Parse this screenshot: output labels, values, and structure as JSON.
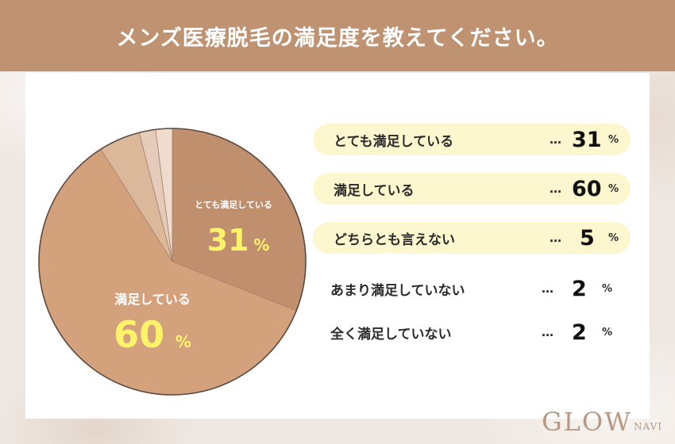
{
  "header": {
    "title": "メンズ医療脱毛の満足度を教えてください。"
  },
  "chart_data": {
    "type": "pie",
    "categories": [
      "とても満足している",
      "満足している",
      "どちらとも言えない",
      "あまり満足していない",
      "全く満足していない"
    ],
    "values": [
      31,
      60,
      5,
      2,
      2
    ],
    "unit": "%",
    "colors": [
      "#c08f6e",
      "#d3a27c",
      "#dcb89b",
      "#e5ccba",
      "#efdccf"
    ],
    "slice_labels": [
      {
        "text": "とても満足している",
        "value": "31",
        "unit": "%"
      },
      {
        "text": "満足している",
        "value": "60",
        "unit": "%"
      }
    ]
  },
  "legend": [
    {
      "label": "とても満足している",
      "dots": "…",
      "value": "31",
      "unit": "%",
      "highlight": true
    },
    {
      "label": "満足している",
      "dots": "…",
      "value": "60",
      "unit": "%",
      "highlight": true
    },
    {
      "label": "どちらとも言えない",
      "dots": "…",
      "value": "5",
      "unit": "%",
      "highlight": true
    },
    {
      "label": "あまり満足していない",
      "dots": "…",
      "value": "2",
      "unit": "%",
      "highlight": false
    },
    {
      "label": "全く満足していない",
      "dots": "…",
      "value": "2",
      "unit": "%",
      "highlight": false
    }
  ],
  "logo": {
    "main": "GLOW",
    "sub": "NAVI"
  }
}
